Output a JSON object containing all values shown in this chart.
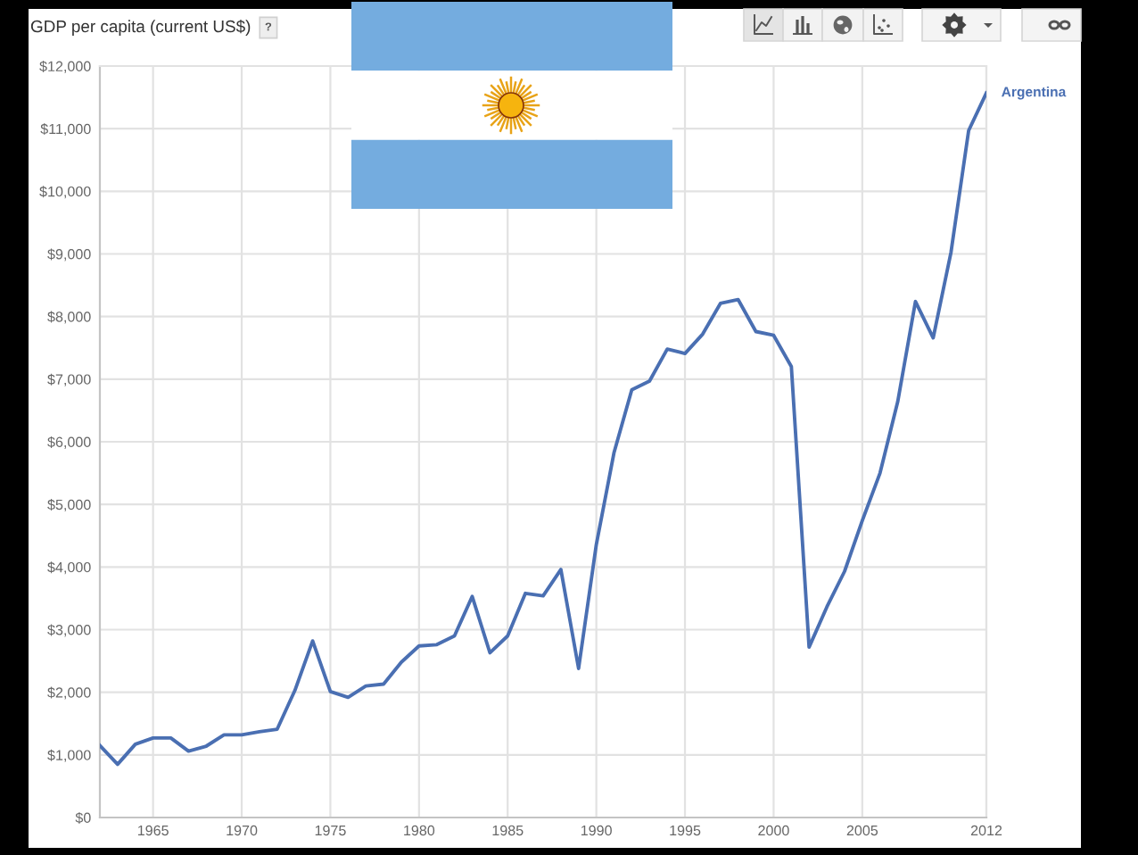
{
  "chart_data": {
    "type": "line",
    "title": "GDP per capita (current US$)",
    "annotations": [
      "?"
    ],
    "x": [
      1962,
      1963,
      1964,
      1965,
      1966,
      1967,
      1968,
      1969,
      1970,
      1971,
      1972,
      1973,
      1974,
      1975,
      1976,
      1977,
      1978,
      1979,
      1980,
      1981,
      1982,
      1983,
      1984,
      1985,
      1986,
      1987,
      1988,
      1989,
      1990,
      1991,
      1992,
      1993,
      1994,
      1995,
      1996,
      1997,
      1998,
      1999,
      2000,
      2001,
      2002,
      2003,
      2004,
      2005,
      2006,
      2007,
      2008,
      2009,
      2010,
      2011,
      2012
    ],
    "series": [
      {
        "name": "Argentina",
        "color": "#4a6fb2",
        "values": [
          1150,
          850,
          1170,
          1270,
          1270,
          1060,
          1140,
          1320,
          1320,
          1370,
          1410,
          2030,
          2820,
          2010,
          1920,
          2100,
          2130,
          2480,
          2740,
          2760,
          2900,
          3530,
          2630,
          2900,
          3580,
          3540,
          3960,
          2380,
          4360,
          5830,
          6830,
          6970,
          7480,
          7410,
          7720,
          8210,
          8270,
          7760,
          7700,
          7200,
          2720,
          3360,
          3930,
          4740,
          5500,
          6640,
          8240,
          7660,
          9020,
          10970,
          11570
        ]
      }
    ],
    "xlim": [
      1962,
      2012
    ],
    "xticks": [
      1965,
      1970,
      1975,
      1980,
      1985,
      1990,
      1995,
      2000,
      2005,
      2012
    ],
    "ylim": [
      0,
      12000
    ],
    "yticks": [
      {
        "value": 0,
        "label": "$0"
      },
      {
        "value": 1000,
        "label": "$1,000"
      },
      {
        "value": 2000,
        "label": "$2,000"
      },
      {
        "value": 3000,
        "label": "$3,000"
      },
      {
        "value": 4000,
        "label": "$4,000"
      },
      {
        "value": 5000,
        "label": "$5,000"
      },
      {
        "value": 6000,
        "label": "$6,000"
      },
      {
        "value": 7000,
        "label": "$7,000"
      },
      {
        "value": 8000,
        "label": "$8,000"
      },
      {
        "value": 9000,
        "label": "$9,000"
      },
      {
        "value": 10000,
        "label": "$10,000"
      },
      {
        "value": 11000,
        "label": "$11,000"
      },
      {
        "value": 12000,
        "label": "$12,000"
      }
    ],
    "grid": true,
    "line_style": "solid"
  }
}
